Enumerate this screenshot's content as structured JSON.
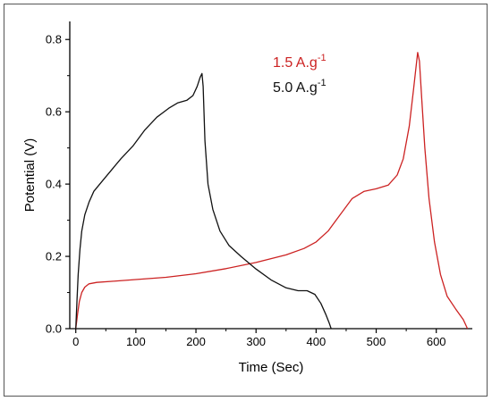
{
  "chart_data": {
    "type": "line",
    "title": "",
    "xlabel": "Time (Sec)",
    "ylabel": "Potential (V)",
    "xlim": [
      -10,
      660
    ],
    "ylim": [
      0,
      0.85
    ],
    "xticks": [
      0,
      100,
      200,
      300,
      400,
      500,
      600
    ],
    "yticks": [
      0.0,
      0.2,
      0.4,
      0.6,
      0.8
    ],
    "xtick_labels": [
      "0",
      "100",
      "200",
      "300",
      "400",
      "500",
      "600"
    ],
    "ytick_labels": [
      "0.0",
      "0.2",
      "0.4",
      "0.6",
      "0.8"
    ],
    "legend_position": "top-right",
    "series": [
      {
        "name": "1.5 A.g-1",
        "label_main": "1.5 A.g",
        "label_sup": "-1",
        "color": "#cc2222",
        "points": [
          [
            0,
            0.0
          ],
          [
            3,
            0.04
          ],
          [
            6,
            0.075
          ],
          [
            10,
            0.1
          ],
          [
            15,
            0.115
          ],
          [
            22,
            0.124
          ],
          [
            35,
            0.128
          ],
          [
            60,
            0.131
          ],
          [
            100,
            0.136
          ],
          [
            150,
            0.142
          ],
          [
            200,
            0.152
          ],
          [
            250,
            0.166
          ],
          [
            300,
            0.183
          ],
          [
            350,
            0.204
          ],
          [
            380,
            0.222
          ],
          [
            400,
            0.24
          ],
          [
            420,
            0.27
          ],
          [
            440,
            0.315
          ],
          [
            460,
            0.36
          ],
          [
            480,
            0.38
          ],
          [
            500,
            0.387
          ],
          [
            520,
            0.397
          ],
          [
            535,
            0.425
          ],
          [
            545,
            0.47
          ],
          [
            555,
            0.56
          ],
          [
            562,
            0.66
          ],
          [
            566,
            0.72
          ],
          [
            569,
            0.764
          ],
          [
            572,
            0.74
          ],
          [
            576,
            0.63
          ],
          [
            581,
            0.5
          ],
          [
            588,
            0.36
          ],
          [
            597,
            0.24
          ],
          [
            607,
            0.15
          ],
          [
            618,
            0.09
          ],
          [
            632,
            0.055
          ],
          [
            645,
            0.025
          ],
          [
            652,
            0.0
          ]
        ]
      },
      {
        "name": "5.0 A.g-1",
        "label_main": "5.0 A.g",
        "label_sup": "-1",
        "color": "#111111",
        "points": [
          [
            0,
            0.0
          ],
          [
            2,
            0.08
          ],
          [
            4,
            0.15
          ],
          [
            7,
            0.22
          ],
          [
            10,
            0.27
          ],
          [
            15,
            0.315
          ],
          [
            22,
            0.35
          ],
          [
            30,
            0.38
          ],
          [
            45,
            0.41
          ],
          [
            60,
            0.44
          ],
          [
            75,
            0.47
          ],
          [
            95,
            0.505
          ],
          [
            115,
            0.55
          ],
          [
            135,
            0.585
          ],
          [
            155,
            0.61
          ],
          [
            170,
            0.625
          ],
          [
            185,
            0.632
          ],
          [
            195,
            0.645
          ],
          [
            202,
            0.67
          ],
          [
            207,
            0.695
          ],
          [
            210,
            0.706
          ],
          [
            212,
            0.67
          ],
          [
            215,
            0.52
          ],
          [
            220,
            0.4
          ],
          [
            228,
            0.33
          ],
          [
            240,
            0.27
          ],
          [
            255,
            0.23
          ],
          [
            275,
            0.2
          ],
          [
            300,
            0.165
          ],
          [
            325,
            0.135
          ],
          [
            350,
            0.113
          ],
          [
            370,
            0.105
          ],
          [
            385,
            0.105
          ],
          [
            398,
            0.095
          ],
          [
            408,
            0.07
          ],
          [
            416,
            0.04
          ],
          [
            422,
            0.015
          ],
          [
            425,
            0.0
          ]
        ]
      }
    ]
  }
}
